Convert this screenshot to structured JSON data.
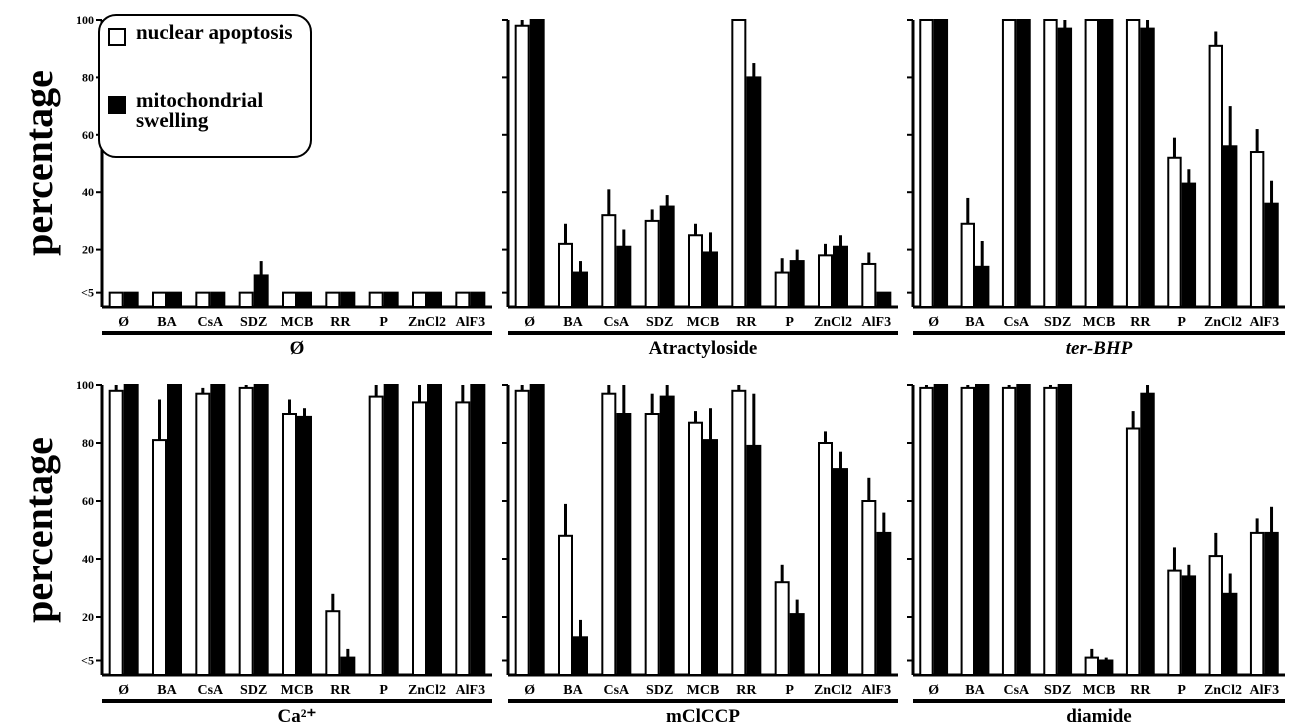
{
  "ylabel": "percentage",
  "legend": {
    "nuclear": "nuclear apoptosis",
    "mito": "mitochondrial swelling",
    "nuclear_color": "#ffffff",
    "mito_color": "#000000"
  },
  "chart_data": [
    {
      "type": "bar",
      "title": "Ø",
      "ylabel": "percentage",
      "yticks": [
        "<5",
        "20",
        "40",
        "60",
        "80",
        "100"
      ],
      "ylim": [
        0,
        100
      ],
      "categories": [
        "Ø",
        "BA",
        "CsA",
        "SDZ",
        "MCB",
        "RR",
        "P",
        "ZnCl2",
        "AlF3"
      ],
      "series": [
        {
          "name": "nuclear apoptosis",
          "values": [
            5,
            5,
            5,
            5,
            5,
            5,
            5,
            5,
            5
          ]
        },
        {
          "name": "mitochondrial swelling",
          "values": [
            5,
            5,
            5,
            11,
            5,
            5,
            5,
            5,
            5
          ],
          "errors": [
            0,
            0,
            0,
            5,
            0,
            0,
            0,
            0,
            0
          ]
        }
      ]
    },
    {
      "type": "bar",
      "title": "Atractyloside",
      "ylabel": "",
      "yticks": [],
      "ylim": [
        0,
        100
      ],
      "categories": [
        "Ø",
        "BA",
        "CsA",
        "SDZ",
        "MCB",
        "RR",
        "P",
        "ZnCl2",
        "AlF3"
      ],
      "series": [
        {
          "name": "nuclear apoptosis",
          "values": [
            98,
            22,
            32,
            30,
            25,
            100,
            12,
            18,
            15
          ],
          "errors": [
            2,
            7,
            9,
            4,
            4,
            0,
            5,
            4,
            4
          ]
        },
        {
          "name": "mitochondrial swelling",
          "values": [
            100,
            12,
            21,
            35,
            19,
            80,
            16,
            21,
            5
          ],
          "errors": [
            0,
            4,
            6,
            4,
            7,
            5,
            4,
            4,
            0
          ]
        }
      ]
    },
    {
      "type": "bar",
      "title": "ter-BHP",
      "ylabel": "",
      "yticks": [],
      "ylim": [
        0,
        100
      ],
      "categories": [
        "Ø",
        "BA",
        "CsA",
        "SDZ",
        "MCB",
        "RR",
        "P",
        "ZnCl2",
        "AlF3"
      ],
      "series": [
        {
          "name": "nuclear apoptosis",
          "values": [
            100,
            29,
            100,
            100,
            100,
            100,
            52,
            91,
            54
          ],
          "errors": [
            0,
            9,
            0,
            0,
            0,
            0,
            7,
            5,
            8
          ]
        },
        {
          "name": "mitochondrial swelling",
          "values": [
            100,
            14,
            100,
            97,
            100,
            97,
            43,
            56,
            36
          ],
          "errors": [
            0,
            9,
            0,
            3,
            0,
            3,
            5,
            14,
            8
          ]
        }
      ]
    },
    {
      "type": "bar",
      "title": "Ca²⁺",
      "ylabel": "percentage",
      "yticks": [
        "<5",
        "20",
        "40",
        "60",
        "80",
        "100"
      ],
      "ylim": [
        0,
        100
      ],
      "categories": [
        "Ø",
        "BA",
        "CsA",
        "SDZ",
        "MCB",
        "RR",
        "P",
        "ZnCl2",
        "AlF3"
      ],
      "series": [
        {
          "name": "nuclear apoptosis",
          "values": [
            98,
            81,
            97,
            99,
            90,
            22,
            96,
            94,
            94
          ],
          "errors": [
            2,
            14,
            2,
            1,
            5,
            6,
            4,
            6,
            6
          ]
        },
        {
          "name": "mitochondrial swelling",
          "values": [
            100,
            100,
            100,
            100,
            89,
            6,
            100,
            100,
            100
          ],
          "errors": [
            0,
            0,
            0,
            0,
            3,
            3,
            0,
            0,
            0
          ]
        }
      ]
    },
    {
      "type": "bar",
      "title": "mClCCP",
      "ylabel": "",
      "yticks": [],
      "ylim": [
        0,
        100
      ],
      "categories": [
        "Ø",
        "BA",
        "CsA",
        "SDZ",
        "MCB",
        "RR",
        "P",
        "ZnCl2",
        "AlF3"
      ],
      "series": [
        {
          "name": "nuclear apoptosis",
          "values": [
            98,
            48,
            97,
            90,
            87,
            98,
            32,
            80,
            60
          ],
          "errors": [
            2,
            11,
            3,
            7,
            4,
            2,
            6,
            4,
            8
          ]
        },
        {
          "name": "mitochondrial swelling",
          "values": [
            100,
            13,
            90,
            96,
            81,
            79,
            21,
            71,
            49
          ],
          "errors": [
            0,
            6,
            10,
            4,
            11,
            18,
            5,
            6,
            7
          ]
        }
      ]
    },
    {
      "type": "bar",
      "title": "diamide",
      "ylabel": "",
      "yticks": [],
      "ylim": [
        0,
        100
      ],
      "categories": [
        "Ø",
        "BA",
        "CsA",
        "SDZ",
        "MCB",
        "RR",
        "P",
        "ZnCl2",
        "AlF3"
      ],
      "series": [
        {
          "name": "nuclear apoptosis",
          "values": [
            99,
            99,
            99,
            99,
            6,
            85,
            36,
            41,
            49
          ],
          "errors": [
            1,
            1,
            1,
            1,
            3,
            6,
            8,
            8,
            5
          ]
        },
        {
          "name": "mitochondrial swelling",
          "values": [
            100,
            100,
            100,
            100,
            5,
            97,
            34,
            28,
            49
          ],
          "errors": [
            0,
            0,
            0,
            0,
            1,
            3,
            4,
            7,
            9
          ]
        }
      ]
    }
  ]
}
